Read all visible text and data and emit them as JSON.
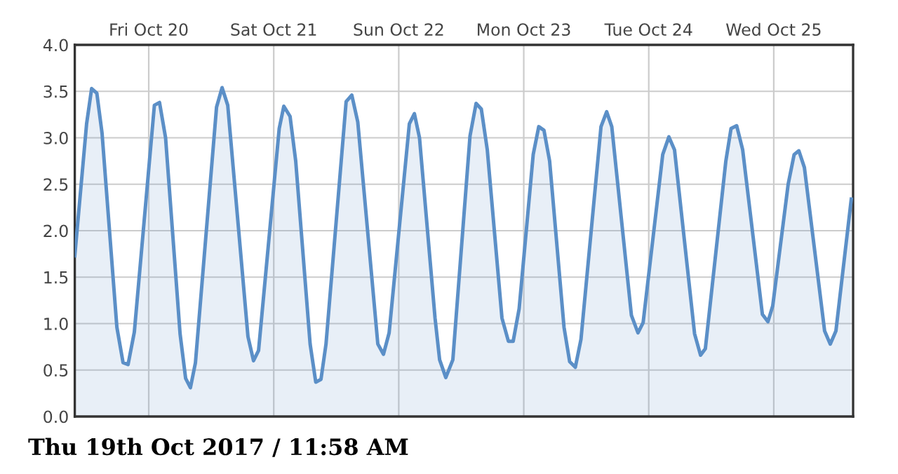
{
  "chart_data": {
    "type": "area",
    "x": [
      "2017-10-19T09:48",
      "2017-10-19T12:04",
      "2017-10-19T13:02",
      "2017-10-19T14:02",
      "2017-10-19T15:02",
      "2017-10-19T17:53",
      "2017-10-19T19:04",
      "2017-10-19T20:02",
      "2017-10-19T21:14",
      "2017-10-20T01:05",
      "2017-10-20T02:04",
      "2017-10-20T03:14",
      "2017-10-20T06:01",
      "2017-10-20T07:05",
      "2017-10-20T08:00",
      "2017-10-20T08:58",
      "2017-10-20T13:01",
      "2017-10-20T14:05",
      "2017-10-20T15:10",
      "2017-10-20T19:03",
      "2017-10-20T20:07",
      "2017-10-20T21:05",
      "2017-10-21T01:03",
      "2017-10-21T01:56",
      "2017-10-21T03:08",
      "2017-10-21T04:13",
      "2017-10-21T06:59",
      "2017-10-21T08:04",
      "2017-10-21T09:04",
      "2017-10-21T10:02",
      "2017-10-21T13:54",
      "2017-10-21T14:59",
      "2017-10-21T16:08",
      "2017-10-21T19:59",
      "2017-10-21T21:04",
      "2017-10-21T22:09",
      "2017-10-22T02:02",
      "2017-10-22T03:00",
      "2017-10-22T03:59",
      "2017-10-22T06:58",
      "2017-10-22T07:51",
      "2017-10-22T09:02",
      "2017-10-22T10:23",
      "2017-10-22T13:41",
      "2017-10-22T14:51",
      "2017-10-22T15:51",
      "2017-10-22T17:00",
      "2017-10-22T19:49",
      "2017-10-22T21:03",
      "2017-10-22T21:58",
      "2017-10-22T23:07",
      "2017-10-23T01:49",
      "2017-10-23T02:53",
      "2017-10-23T03:53",
      "2017-10-23T04:58",
      "2017-10-23T07:44",
      "2017-10-23T08:49",
      "2017-10-23T09:54",
      "2017-10-23T10:59",
      "2017-10-23T14:50",
      "2017-10-23T15:55",
      "2017-10-23T16:54",
      "2017-10-23T20:40",
      "2017-10-23T21:56",
      "2017-10-23T22:55",
      "2017-10-24T02:41",
      "2017-10-24T03:52",
      "2017-10-24T04:57",
      "2017-10-24T08:48",
      "2017-10-24T09:57",
      "2017-10-24T10:52",
      "2017-10-24T14:48",
      "2017-10-24T15:48",
      "2017-10-24T16:53",
      "2017-10-24T18:02",
      "2017-10-24T21:49",
      "2017-10-24T22:53",
      "2017-10-24T23:48",
      "2017-10-25T02:46",
      "2017-10-25T03:55",
      "2017-10-25T04:49",
      "2017-10-25T05:53",
      "2017-10-25T09:46",
      "2017-10-25T10:51",
      "2017-10-25T11:56",
      "2017-10-25T14:53"
    ],
    "series": [
      {
        "color": "#5b8fc7",
        "values": [
          1.73,
          3.15,
          3.53,
          3.48,
          3.05,
          0.96,
          0.58,
          0.56,
          0.91,
          3.35,
          3.38,
          3.0,
          0.89,
          0.41,
          0.31,
          0.58,
          3.33,
          3.54,
          3.35,
          0.86,
          0.6,
          0.71,
          3.1,
          3.34,
          3.23,
          2.75,
          0.78,
          0.37,
          0.4,
          0.78,
          3.39,
          3.46,
          3.17,
          0.78,
          0.67,
          0.9,
          3.15,
          3.26,
          3.0,
          1.06,
          0.61,
          0.42,
          0.61,
          3.02,
          3.37,
          3.31,
          2.87,
          1.06,
          0.81,
          0.81,
          1.16,
          2.82,
          3.12,
          3.08,
          2.75,
          0.96,
          0.59,
          0.53,
          0.83,
          3.12,
          3.28,
          3.12,
          1.09,
          0.9,
          1.01,
          2.82,
          3.01,
          2.87,
          0.89,
          0.66,
          0.73,
          2.75,
          3.1,
          3.13,
          2.87,
          1.1,
          1.02,
          1.19,
          2.5,
          2.82,
          2.86,
          2.68,
          0.92,
          0.78,
          0.92,
          2.34
        ]
      }
    ],
    "xlim": [
      "2017-10-19T09:48",
      "2017-10-25T15:14"
    ],
    "xticks": [
      {
        "value": "2017-10-20",
        "label": "Fri Oct 20"
      },
      {
        "value": "2017-10-21",
        "label": "Sat Oct 21"
      },
      {
        "value": "2017-10-22",
        "label": "Sun Oct 22"
      },
      {
        "value": "2017-10-23",
        "label": "Mon Oct 23"
      },
      {
        "value": "2017-10-24",
        "label": "Tue Oct 24"
      },
      {
        "value": "2017-10-25",
        "label": "Wed Oct 25"
      }
    ],
    "ylim": [
      0,
      4
    ],
    "yticks": [
      {
        "value": 0,
        "label": "0.0"
      },
      {
        "value": 0.5,
        "label": "0.5"
      },
      {
        "value": 1,
        "label": "1.0"
      },
      {
        "value": 1.5,
        "label": "1.5"
      },
      {
        "value": 2,
        "label": "2.0"
      },
      {
        "value": 2.5,
        "label": "2.5"
      },
      {
        "value": 3,
        "label": "3.0"
      },
      {
        "value": 3.5,
        "label": "3.5"
      },
      {
        "value": 4,
        "label": "4.0"
      }
    ],
    "grid": true,
    "legend": false,
    "annotations": [
      "Thu 19th Oct 2017 / 11:58 AM"
    ]
  }
}
